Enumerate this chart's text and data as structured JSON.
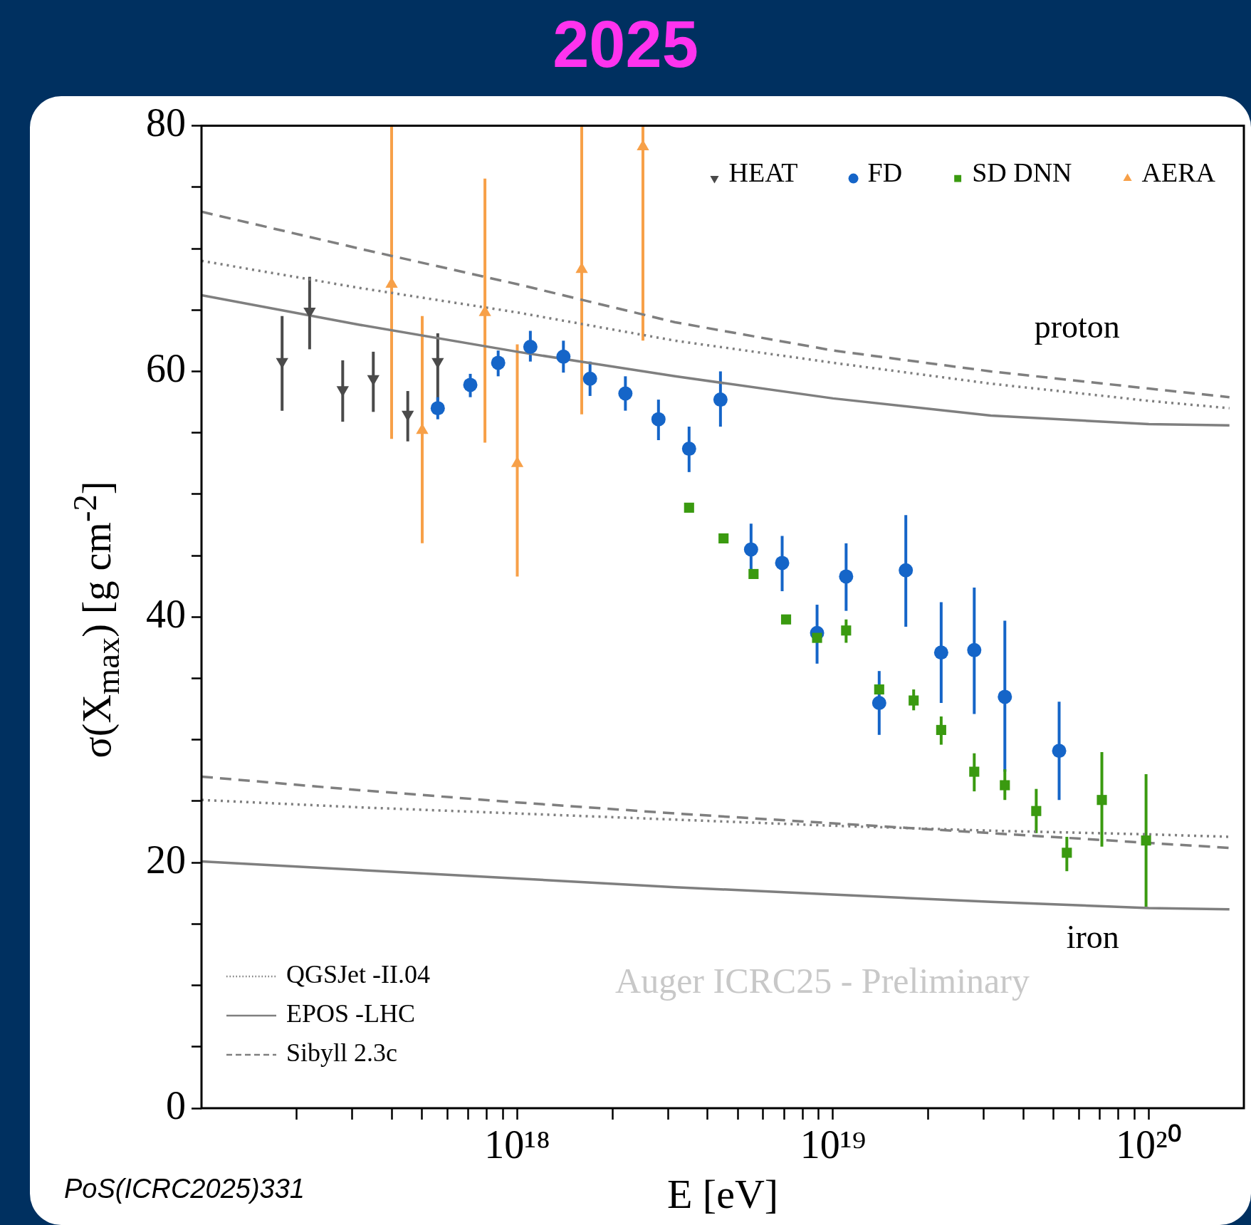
{
  "chart_data": {
    "type": "scatter",
    "title": "2025",
    "xlabel": "E [eV]",
    "ylabel": "σ(X$_{max}$) [g cm$^{-2}$]",
    "log": "x",
    "legend": "top right",
    "xlim": [
      1e+17,
      2e+20
    ],
    "xticks": [
      {
        "value": 2e+17,
        "label": null
      },
      {
        "value": 3e+17,
        "label": null
      },
      {
        "value": 4e+17,
        "label": null
      },
      {
        "value": 5e+17,
        "label": null
      },
      {
        "value": 6e+17,
        "label": null
      },
      {
        "value": 7e+17,
        "label": null
      },
      {
        "value": 8e+17,
        "label": null
      },
      {
        "value": 9e+17,
        "label": null
      },
      {
        "value": 1e+18,
        "label": "10¹⁸"
      },
      {
        "value": 2e+18,
        "label": null
      },
      {
        "value": 3e+18,
        "label": null
      },
      {
        "value": 4e+18,
        "label": null
      },
      {
        "value": 5e+18,
        "label": null
      },
      {
        "value": 6e+18,
        "label": null
      },
      {
        "value": 7e+18,
        "label": null
      },
      {
        "value": 8e+18,
        "label": null
      },
      {
        "value": 9e+18,
        "label": null
      },
      {
        "value": 1e+19,
        "label": "10¹⁹"
      },
      {
        "value": 2e+19,
        "label": null
      },
      {
        "value": 3e+19,
        "label": null
      },
      {
        "value": 4e+19,
        "label": null
      },
      {
        "value": 5e+19,
        "label": null
      },
      {
        "value": 6e+19,
        "label": null
      },
      {
        "value": 7e+19,
        "label": null
      },
      {
        "value": 8e+19,
        "label": null
      },
      {
        "value": 9e+19,
        "label": null
      },
      {
        "value": 1e+20,
        "label": "10²⁰"
      }
    ],
    "ylim": [
      0,
      80
    ],
    "yticks": [
      0,
      {
        "value": 5,
        "label": null
      },
      {
        "value": 10,
        "label": null
      },
      {
        "value": 15,
        "label": null
      },
      20,
      {
        "value": 25,
        "label": null
      },
      {
        "value": 30,
        "label": null
      },
      {
        "value": 35,
        "label": null
      },
      40,
      {
        "value": 45,
        "label": null
      },
      {
        "value": 50,
        "label": null
      },
      {
        "value": 55,
        "label": null
      },
      60,
      {
        "value": 65,
        "label": null
      },
      {
        "value": 70,
        "label": null
      },
      {
        "value": 75,
        "label": null
      },
      80
    ],
    "annotations": [
      "Auger ICRC25 - Preliminary",
      "PoS(ICRC2025)331",
      "proton",
      "iron"
    ],
    "series": [
      {
        "name": "HEAT",
        "marker": "triangle-down",
        "color": "#4a4a4a",
        "x": [
          1.8e+17,
          2.2e+17,
          2.8e+17,
          3.5e+17,
          4.5e+17,
          5.6e+17
        ],
        "values": [
          60.8,
          64.9,
          58.5,
          59.4,
          56.5,
          60.8
        ],
        "errors": [
          [
            56.8,
            64.5
          ],
          [
            61.8,
            67.7
          ],
          [
            55.9,
            60.9
          ],
          [
            56.7,
            61.6
          ],
          [
            54.3,
            58.4
          ],
          [
            56.5,
            63.1
          ]
        ]
      },
      {
        "name": "FD",
        "marker": "circle",
        "color": "#1565c8",
        "x": [
          5.6e+17,
          7.1e+17,
          8.7e+17,
          1.1e+18,
          1.4e+18,
          1.7e+18,
          2.2e+18,
          2.8e+18,
          3.5e+18,
          4.4e+18,
          5.5e+18,
          6.9e+18,
          8.9e+18,
          1.1e+19,
          1.4e+19,
          1.7e+19,
          2.2e+19,
          2.8e+19,
          3.5e+19,
          5.2e+19
        ],
        "values": [
          57.0,
          58.9,
          60.7,
          62.0,
          61.2,
          59.4,
          58.2,
          56.1,
          53.7,
          57.7,
          45.5,
          44.4,
          38.7,
          43.3,
          33.0,
          43.8,
          37.1,
          37.3,
          33.5,
          29.1
        ],
        "errors": [
          [
            56.1,
            57.9
          ],
          [
            57.9,
            59.8
          ],
          [
            59.6,
            61.7
          ],
          [
            60.8,
            63.3
          ],
          [
            59.9,
            62.5
          ],
          [
            58.0,
            60.8
          ],
          [
            56.8,
            59.6
          ],
          [
            54.4,
            57.7
          ],
          [
            51.8,
            55.5
          ],
          [
            55.5,
            60.0
          ],
          [
            43.9,
            47.6
          ],
          [
            42.1,
            46.6
          ],
          [
            36.2,
            41.0
          ],
          [
            40.5,
            46.0
          ],
          [
            30.4,
            35.6
          ],
          [
            39.2,
            48.3
          ],
          [
            33.0,
            41.2
          ],
          [
            32.1,
            42.4
          ],
          [
            27.4,
            39.7
          ],
          [
            25.1,
            33.1
          ]
        ]
      },
      {
        "name": "SD DNN",
        "marker": "square",
        "color": "#3a9a10",
        "x": [
          3.5e+18,
          4.5e+18,
          5.6e+18,
          7.1e+18,
          8.9e+18,
          1.1e+19,
          1.4e+19,
          1.8e+19,
          2.2e+19,
          2.8e+19,
          3.5e+19,
          4.4e+19,
          5.5e+19,
          7.1e+19,
          9.8e+19
        ],
        "values": [
          48.9,
          46.4,
          43.5,
          39.8,
          38.3,
          38.9,
          34.1,
          33.2,
          30.8,
          27.4,
          26.3,
          24.2,
          20.8,
          25.1,
          21.8
        ],
        "errors": [
          null,
          null,
          null,
          null,
          null,
          [
            37.9,
            39.8
          ],
          null,
          [
            32.4,
            34.1
          ],
          [
            29.6,
            31.9
          ],
          [
            25.8,
            28.9
          ],
          [
            25.1,
            27.6
          ],
          [
            22.4,
            26.0
          ],
          [
            19.3,
            22.1
          ],
          [
            21.3,
            29.0
          ],
          [
            16.4,
            27.2
          ]
        ]
      },
      {
        "name": "AERA",
        "marker": "triangle",
        "color": "#f7a048",
        "x": [
          4e+17,
          5e+17,
          7.9e+17,
          1e+18,
          1.6e+18,
          2.5e+18
        ],
        "values": [
          67.1,
          55.2,
          64.8,
          52.5,
          68.3,
          78.3
        ],
        "errors": [
          [
            54.5,
            80
          ],
          [
            46.0,
            64.5
          ],
          [
            54.2,
            75.7
          ],
          [
            43.3,
            62.2
          ],
          [
            56.5,
            80
          ],
          [
            62.5,
            80
          ]
        ]
      },
      {
        "name": "QGSJet -II.04",
        "type": "line",
        "line_style": "dotted",
        "color": "#7f7f7f",
        "x": [
          1e+17,
          3.16e+17,
          1e+18,
          3.16e+18,
          1e+19,
          3.16e+19,
          1e+20,
          1.8e+20
        ],
        "values": [
          69.0,
          66.8,
          64.8,
          62.5,
          60.7,
          59.0,
          57.6,
          57.0
        ]
      },
      {
        "name": "EPOS -LHC",
        "type": "line",
        "line_style": "solid",
        "color": "#7f7f7f",
        "x": [
          1e+17,
          3.16e+17,
          1e+18,
          3.16e+18,
          1e+19,
          3.16e+19,
          1e+20,
          1.8e+20
        ],
        "values": [
          66.2,
          63.8,
          61.6,
          59.6,
          57.8,
          56.4,
          55.7,
          55.6
        ]
      },
      {
        "name": "Sibyll 2.3c",
        "type": "line",
        "line_style": "dashed",
        "color": "#7f7f7f",
        "x": [
          1e+17,
          3.16e+17,
          1e+18,
          3.16e+18,
          1e+19,
          3.16e+19,
          1e+20,
          1.8e+20
        ],
        "values": [
          73.0,
          70.0,
          67.1,
          64.0,
          61.7,
          60.0,
          58.6,
          57.9
        ]
      },
      {
        "type": "line",
        "line_style": "dotted",
        "color": "#7f7f7f",
        "x": [
          1e+17,
          3.16e+17,
          1e+18,
          3.16e+18,
          1e+19,
          3.16e+19,
          1e+20,
          1.8e+20
        ],
        "values": [
          25.1,
          24.5,
          24.0,
          23.5,
          23.0,
          22.6,
          22.3,
          22.1
        ]
      },
      {
        "type": "line",
        "line_style": "solid",
        "color": "#7f7f7f",
        "x": [
          1e+17,
          3.16e+17,
          1e+18,
          3.16e+18,
          1e+19,
          3.16e+19,
          1e+20,
          1.8e+20
        ],
        "values": [
          20.1,
          19.4,
          18.7,
          18.0,
          17.4,
          16.8,
          16.3,
          16.2
        ]
      },
      {
        "type": "line",
        "line_style": "dashed",
        "color": "#7f7f7f",
        "x": [
          1e+17,
          3.16e+17,
          1e+18,
          3.16e+18,
          1e+19,
          3.16e+19,
          1e+20,
          1.8e+20
        ],
        "values": [
          27.0,
          25.9,
          24.9,
          24.0,
          23.2,
          22.4,
          21.6,
          21.2
        ]
      }
    ]
  }
}
